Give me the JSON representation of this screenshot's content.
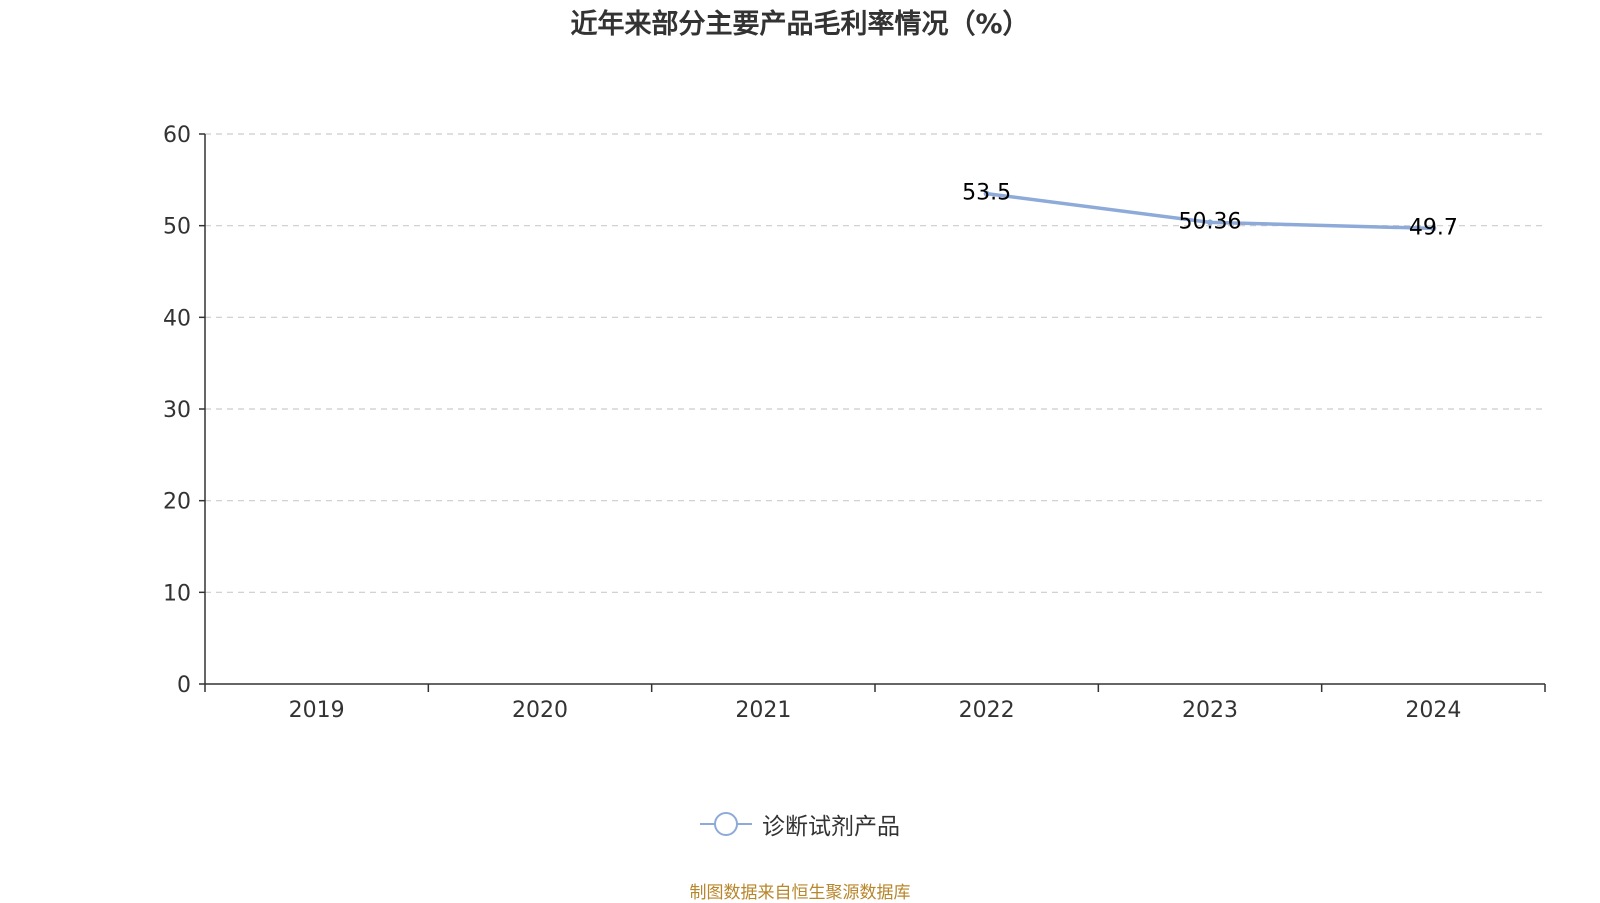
{
  "chart_data": {
    "type": "line",
    "title": "近年来部分主要产品毛利率情况（%）",
    "categories": [
      "2019",
      "2020",
      "2021",
      "2022",
      "2023",
      "2024"
    ],
    "series": [
      {
        "name": "诊断试剂产品",
        "values": [
          null,
          null,
          null,
          53.5,
          50.36,
          49.7
        ],
        "labels": [
          "",
          "",
          "",
          "53.5",
          "50.36",
          "49.7"
        ]
      }
    ],
    "ylim": [
      0,
      60
    ],
    "yticks": [
      "0",
      "10",
      "20",
      "30",
      "40",
      "50",
      "60"
    ],
    "xlabel": "",
    "ylabel": "",
    "grid": true,
    "legend_position": "bottom-center",
    "colors": {
      "series": "#8eaad8",
      "axis": "#333333",
      "grid": "#cccccc",
      "text": "#333333",
      "source": "#b8862b"
    }
  },
  "source_note": "制图数据来自恒生聚源数据库"
}
